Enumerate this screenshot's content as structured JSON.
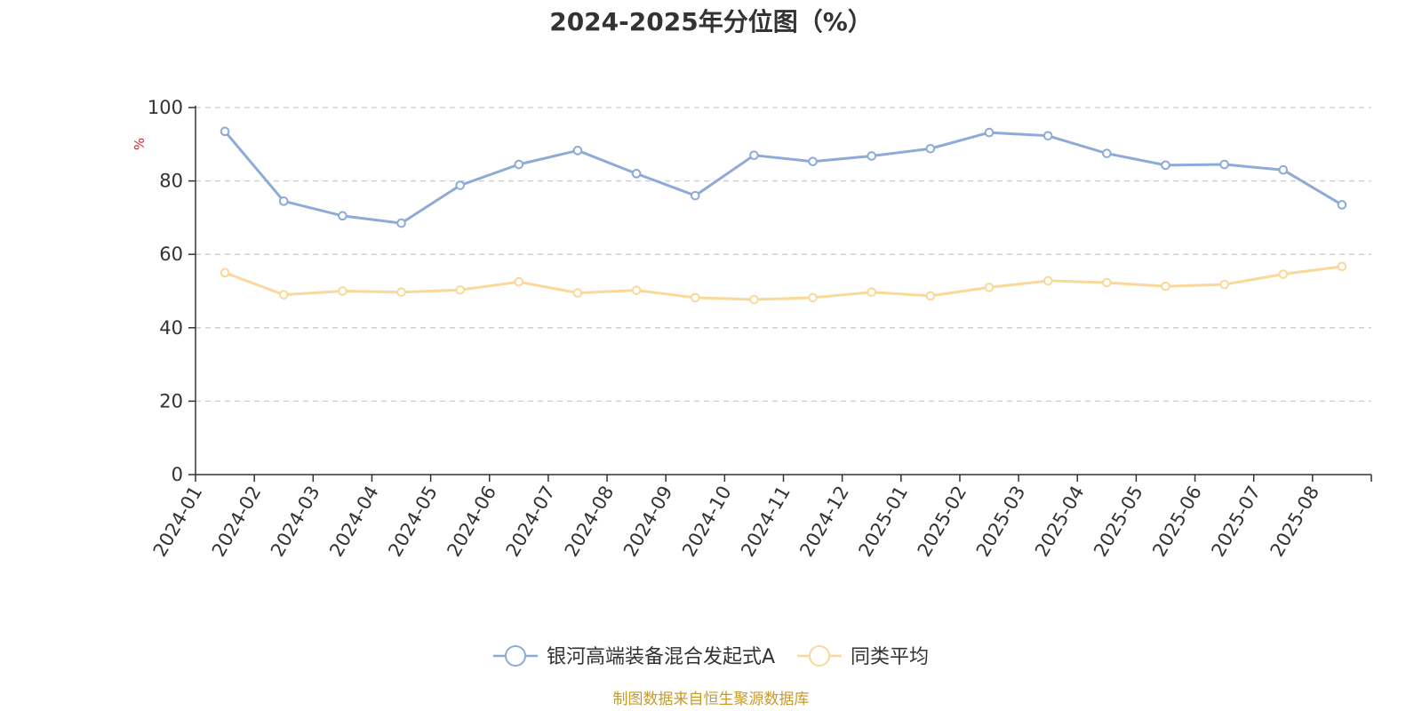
{
  "chart_data": {
    "type": "line",
    "title": "2024-2025年分位图（%）",
    "ylabel": "%",
    "xlabel": "",
    "ylim": [
      0,
      100
    ],
    "yticks": [
      0,
      20,
      40,
      60,
      80,
      100
    ],
    "grid": "horizontal dashed",
    "legend_position": "bottom-center",
    "categories": [
      "2024-01",
      "2024-02",
      "2024-03",
      "2024-04",
      "2024-05",
      "2024-06",
      "2024-07",
      "2024-08",
      "2024-09",
      "2024-10",
      "2024-11",
      "2024-12",
      "2025-01",
      "2025-02",
      "2025-03",
      "2025-04",
      "2025-05",
      "2025-06",
      "2025-07",
      "2025-08"
    ],
    "series": [
      {
        "name": "银河高端装备混合发起式A",
        "color": "#8eaad8",
        "values": [
          93.5,
          74.5,
          70.5,
          68.5,
          78.8,
          84.5,
          88.3,
          82.0,
          76.0,
          87.0,
          85.3,
          86.8,
          88.8,
          93.2,
          92.3,
          87.5,
          84.3,
          84.5,
          83.0,
          73.5
        ]
      },
      {
        "name": "同类平均",
        "color": "#fad898",
        "values": [
          55.0,
          49.0,
          50.0,
          49.7,
          50.3,
          52.5,
          49.5,
          50.2,
          48.2,
          47.7,
          48.2,
          49.7,
          48.7,
          51.0,
          52.8,
          52.3,
          51.3,
          51.8,
          54.6,
          56.7
        ]
      }
    ],
    "source": "制图数据来自恒生聚源数据库"
  }
}
